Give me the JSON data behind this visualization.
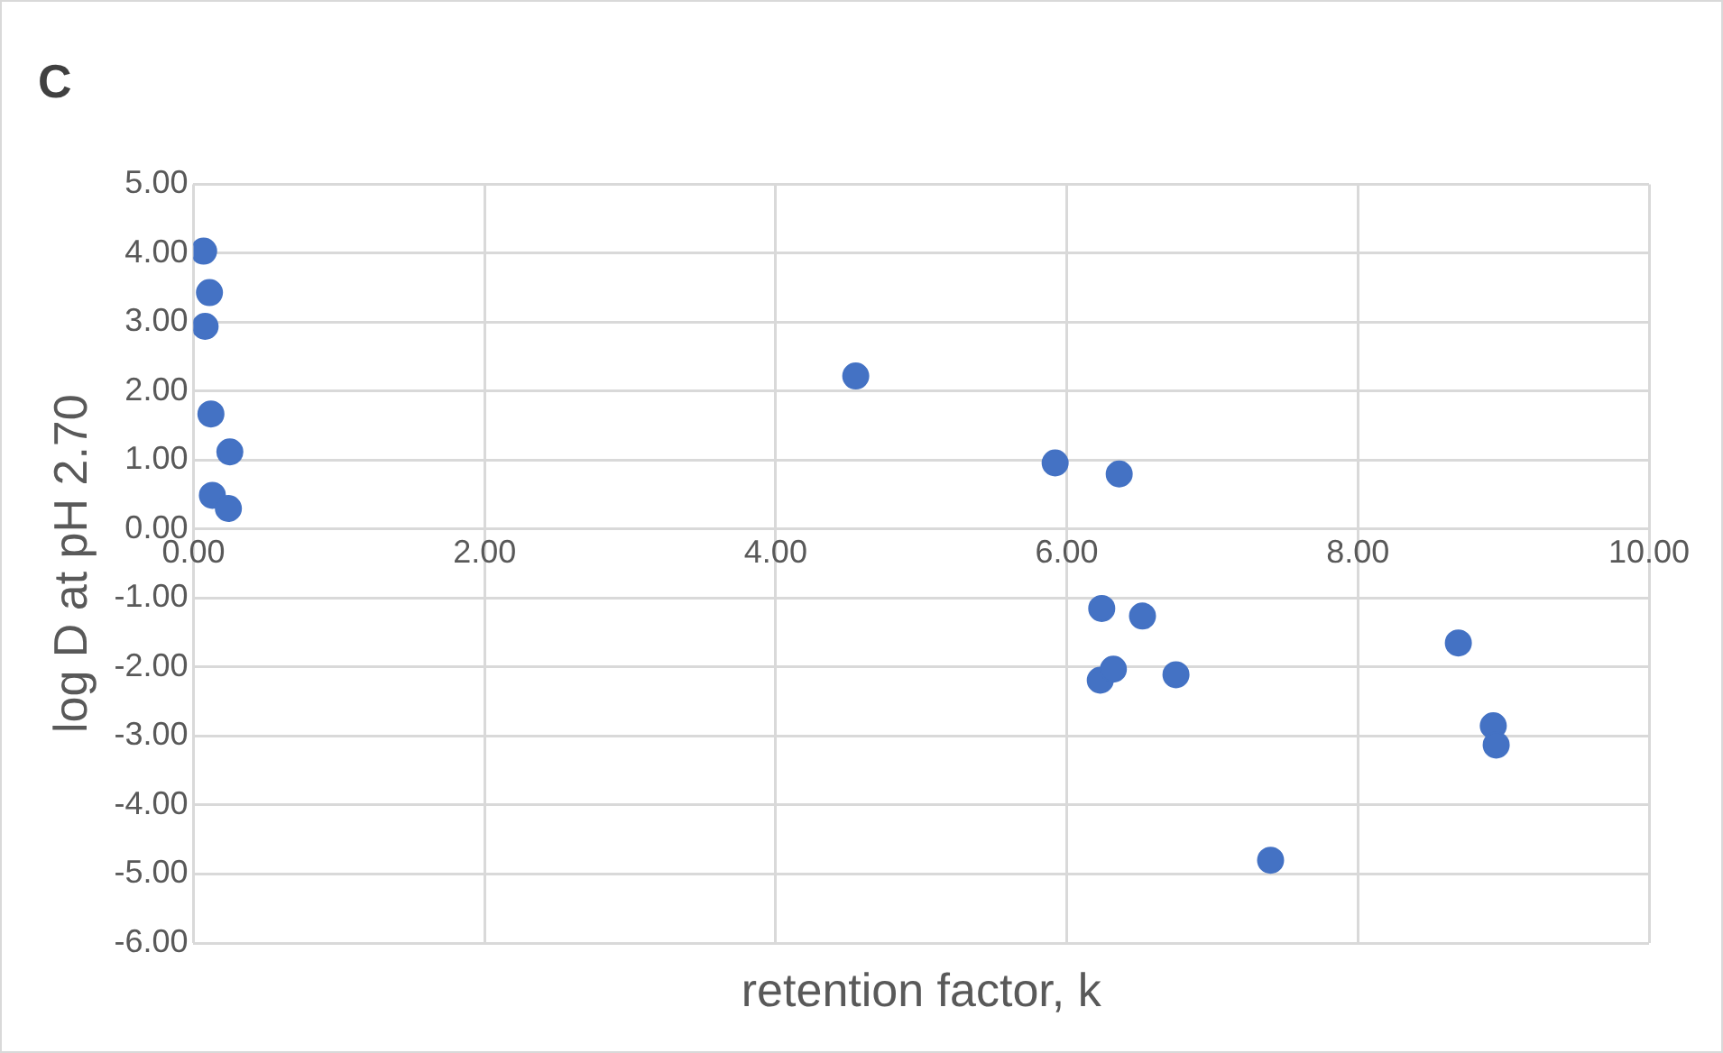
{
  "chart_data": {
    "type": "scatter",
    "title": "C",
    "xlabel": "retention factor, k",
    "ylabel": "log D at pH 2.70",
    "x": [
      0.07,
      0.11,
      0.08,
      0.12,
      0.25,
      0.13,
      0.24,
      4.55,
      5.92,
      6.36,
      6.24,
      6.52,
      6.23,
      6.32,
      6.75,
      7.4,
      8.69,
      8.93,
      8.95
    ],
    "series": [
      {
        "color": "#4472c4",
        "values": [
          4.03,
          3.43,
          2.94,
          1.67,
          1.12,
          0.49,
          0.3,
          2.22,
          0.96,
          0.8,
          -1.15,
          -1.26,
          -2.19,
          -2.03,
          -2.11,
          -4.8,
          -1.65,
          -2.85,
          -3.13
        ]
      }
    ],
    "xlim": [
      0,
      10
    ],
    "xticks": [
      {
        "value": 0,
        "label": "0.00"
      },
      {
        "value": 2,
        "label": "2.00"
      },
      {
        "value": 4,
        "label": "4.00"
      },
      {
        "value": 6,
        "label": "6.00"
      },
      {
        "value": 8,
        "label": "8.00"
      },
      {
        "value": 10,
        "label": "10.00"
      }
    ],
    "ylim": [
      -6,
      5
    ],
    "yticks": [
      {
        "value": -6,
        "label": "-6.00"
      },
      {
        "value": -5,
        "label": "-5.00"
      },
      {
        "value": -4,
        "label": "-4.00"
      },
      {
        "value": -3,
        "label": "-3.00"
      },
      {
        "value": -2,
        "label": "-2.00"
      },
      {
        "value": -1,
        "label": "-1.00"
      },
      {
        "value": 0,
        "label": "0.00"
      },
      {
        "value": 1,
        "label": "1.00"
      },
      {
        "value": 2,
        "label": "2.00"
      },
      {
        "value": 3,
        "label": "3.00"
      },
      {
        "value": 4,
        "label": "4.00"
      },
      {
        "value": 5,
        "label": "5.00"
      }
    ],
    "grid": true,
    "legend": false,
    "marker": "circle"
  }
}
